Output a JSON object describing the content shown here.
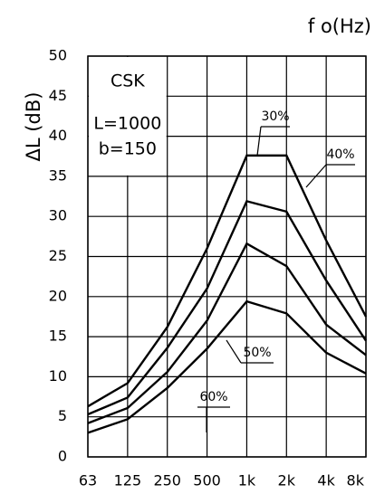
{
  "chart_data": {
    "type": "line",
    "y_label": "ΔL (dB)",
    "x_label": "f o(Hz)",
    "annotations": [
      "CSK",
      "L=1000",
      "b=150"
    ],
    "categories": [
      "63",
      "125",
      "250",
      "500",
      "1k",
      "2k",
      "4k",
      "8k"
    ],
    "series": [
      {
        "name": "30%",
        "color": "#000000",
        "values": [
          6.3,
          9.2,
          16.2,
          26,
          37.6,
          37.6,
          27,
          17.5
        ]
      },
      {
        "name": "40%",
        "color": "#000000",
        "values": [
          5.3,
          7.4,
          13.6,
          21,
          31.9,
          30.6,
          22,
          14.5
        ]
      },
      {
        "name": "50%",
        "color": "#000000",
        "values": [
          4.2,
          6.1,
          10.6,
          17,
          26.6,
          23.8,
          16.5,
          12.7
        ]
      },
      {
        "name": "60%",
        "color": "#000000",
        "values": [
          3,
          4.7,
          8.6,
          13.5,
          19.4,
          17.9,
          13,
          10.4
        ]
      }
    ],
    "ylim": [
      0,
      50
    ],
    "yticks": [
      0,
      5,
      10,
      15,
      20,
      25,
      30,
      35,
      40,
      45,
      50
    ],
    "grid": true
  }
}
